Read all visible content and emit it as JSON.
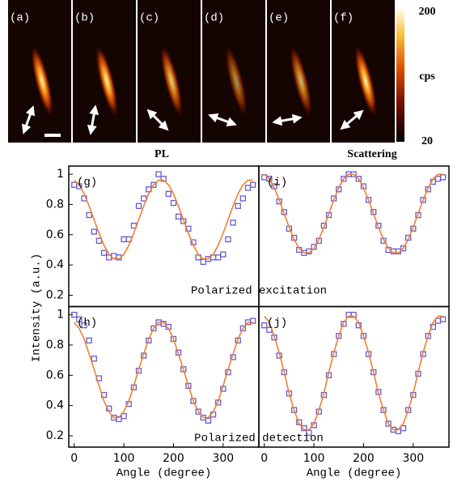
{
  "images": {
    "labels": [
      "(a)",
      "(b)",
      "(c)",
      "(d)",
      "(e)",
      "(f)"
    ]
  },
  "colorbar": {
    "label": "cps",
    "lim": [
      20,
      200
    ],
    "ticks": [
      200,
      20
    ]
  },
  "column_titles": [
    "PL",
    "Scattering"
  ],
  "annotations": [
    "Polarized excitation",
    "Polarized detection"
  ],
  "ylabel": "Intensity (a.u.)",
  "chart_data": [
    {
      "type": "scatter",
      "label": "(g)",
      "xlim": [
        -11,
        372
      ],
      "ylim": [
        0.125,
        1.054
      ],
      "yticks": [
        0.2,
        0.4,
        0.6,
        0.8,
        1
      ],
      "x": [
        0,
        10,
        20,
        30,
        40,
        50,
        60,
        70,
        80,
        90,
        100,
        110,
        120,
        130,
        140,
        150,
        160,
        170,
        180,
        190,
        200,
        210,
        220,
        230,
        240,
        250,
        260,
        270,
        280,
        290,
        300,
        310,
        320,
        330,
        340,
        350,
        360
      ],
      "series": [
        {
          "color": "#6a5acd",
          "marker": "square",
          "values": [
            0.93,
            0.92,
            0.84,
            0.73,
            0.62,
            0.56,
            0.48,
            0.45,
            0.46,
            0.45,
            0.57,
            0.57,
            0.66,
            0.79,
            0.84,
            0.9,
            0.93,
            1.0,
            0.97,
            0.87,
            0.81,
            0.72,
            0.69,
            0.64,
            0.55,
            0.45,
            0.42,
            0.44,
            0.45,
            0.45,
            0.47,
            0.57,
            0.68,
            0.79,
            0.84,
            0.91,
            0.93
          ]
        },
        {
          "color": "#f08030",
          "style": "line",
          "values": [
            0.96,
            0.93,
            0.87,
            0.79,
            0.7,
            0.61,
            0.53,
            0.47,
            0.44,
            0.44,
            0.47,
            0.53,
            0.61,
            0.7,
            0.79,
            0.87,
            0.93,
            0.96,
            0.96,
            0.93,
            0.87,
            0.79,
            0.7,
            0.61,
            0.53,
            0.47,
            0.44,
            0.44,
            0.47,
            0.53,
            0.61,
            0.7,
            0.79,
            0.87,
            0.93,
            0.96,
            0.96
          ]
        }
      ]
    },
    {
      "type": "scatter",
      "label": "(i)",
      "xlim": [
        -11,
        372
      ],
      "ylim": [
        0.125,
        1.054
      ],
      "x": [
        0,
        10,
        20,
        30,
        40,
        50,
        60,
        70,
        80,
        90,
        100,
        110,
        120,
        130,
        140,
        150,
        160,
        170,
        180,
        190,
        200,
        210,
        220,
        230,
        240,
        250,
        260,
        270,
        280,
        290,
        300,
        310,
        320,
        330,
        340,
        350,
        360
      ],
      "series": [
        {
          "color": "#6a5acd",
          "marker": "square",
          "values": [
            0.98,
            0.97,
            0.92,
            0.82,
            0.75,
            0.64,
            0.58,
            0.5,
            0.48,
            0.49,
            0.52,
            0.56,
            0.66,
            0.73,
            0.84,
            0.9,
            0.97,
            1.0,
            1.0,
            0.97,
            0.92,
            0.83,
            0.75,
            0.66,
            0.56,
            0.5,
            0.49,
            0.49,
            0.51,
            0.58,
            0.64,
            0.73,
            0.83,
            0.9,
            0.95,
            0.97,
            0.98
          ]
        },
        {
          "color": "#f08030",
          "style": "line",
          "values": [
            1.0,
            0.97,
            0.91,
            0.83,
            0.74,
            0.65,
            0.57,
            0.51,
            0.48,
            0.48,
            0.51,
            0.57,
            0.65,
            0.74,
            0.83,
            0.91,
            0.97,
            1.0,
            1.0,
            0.97,
            0.91,
            0.83,
            0.74,
            0.65,
            0.57,
            0.51,
            0.48,
            0.48,
            0.51,
            0.57,
            0.65,
            0.74,
            0.83,
            0.91,
            0.97,
            1.0,
            1.0
          ]
        }
      ]
    },
    {
      "type": "scatter",
      "label": "(h)",
      "xlabel": "Angle (degree)",
      "xlim": [
        -11,
        372
      ],
      "ylim": [
        0.125,
        1.054
      ],
      "yticks": [
        0.2,
        0.4,
        0.6,
        0.8,
        1
      ],
      "xticks": [
        0,
        100,
        200,
        300
      ],
      "x": [
        0,
        10,
        20,
        30,
        40,
        50,
        60,
        70,
        80,
        90,
        100,
        110,
        120,
        130,
        140,
        150,
        160,
        170,
        180,
        190,
        200,
        210,
        220,
        230,
        240,
        250,
        260,
        270,
        280,
        290,
        300,
        310,
        320,
        330,
        340,
        350,
        360
      ],
      "series": [
        {
          "color": "#6a5acd",
          "marker": "square",
          "values": [
            1.0,
            0.97,
            0.93,
            0.83,
            0.71,
            0.58,
            0.47,
            0.38,
            0.32,
            0.31,
            0.33,
            0.41,
            0.52,
            0.63,
            0.73,
            0.83,
            0.91,
            0.95,
            0.94,
            0.92,
            0.84,
            0.75,
            0.64,
            0.53,
            0.43,
            0.36,
            0.32,
            0.3,
            0.34,
            0.42,
            0.51,
            0.62,
            0.72,
            0.83,
            0.91,
            0.95,
            0.96
          ]
        },
        {
          "color": "#f08030",
          "style": "line",
          "values": [
            0.95,
            0.91,
            0.84,
            0.74,
            0.64,
            0.53,
            0.43,
            0.36,
            0.32,
            0.32,
            0.36,
            0.43,
            0.53,
            0.64,
            0.74,
            0.84,
            0.91,
            0.95,
            0.95,
            0.91,
            0.84,
            0.74,
            0.64,
            0.53,
            0.43,
            0.36,
            0.32,
            0.32,
            0.36,
            0.43,
            0.53,
            0.64,
            0.74,
            0.84,
            0.91,
            0.95,
            0.95
          ]
        }
      ]
    },
    {
      "type": "scatter",
      "label": "(j)",
      "xlabel": "Angle (degree)",
      "xlim": [
        -11,
        372
      ],
      "ylim": [
        0.125,
        1.054
      ],
      "xticks": [
        0,
        100,
        200,
        300
      ],
      "x": [
        0,
        10,
        20,
        30,
        40,
        50,
        60,
        70,
        80,
        90,
        100,
        110,
        120,
        130,
        140,
        150,
        160,
        170,
        180,
        190,
        200,
        210,
        220,
        230,
        240,
        250,
        260,
        270,
        280,
        290,
        300,
        310,
        320,
        330,
        340,
        350,
        360
      ],
      "series": [
        {
          "color": "#6a5acd",
          "marker": "square",
          "values": [
            0.93,
            0.9,
            0.85,
            0.73,
            0.62,
            0.48,
            0.37,
            0.29,
            0.25,
            0.22,
            0.27,
            0.36,
            0.47,
            0.6,
            0.74,
            0.86,
            0.94,
            1.0,
            1.0,
            0.93,
            0.86,
            0.74,
            0.62,
            0.49,
            0.37,
            0.28,
            0.24,
            0.23,
            0.25,
            0.37,
            0.47,
            0.61,
            0.74,
            0.86,
            0.92,
            0.96,
            0.97
          ]
        },
        {
          "color": "#f08030",
          "style": "line",
          "values": [
            0.99,
            0.95,
            0.86,
            0.75,
            0.62,
            0.48,
            0.37,
            0.28,
            0.24,
            0.24,
            0.28,
            0.37,
            0.48,
            0.62,
            0.75,
            0.86,
            0.95,
            0.99,
            0.99,
            0.95,
            0.86,
            0.75,
            0.62,
            0.48,
            0.37,
            0.28,
            0.24,
            0.24,
            0.28,
            0.37,
            0.48,
            0.62,
            0.75,
            0.86,
            0.95,
            0.99,
            0.99
          ]
        }
      ]
    }
  ]
}
